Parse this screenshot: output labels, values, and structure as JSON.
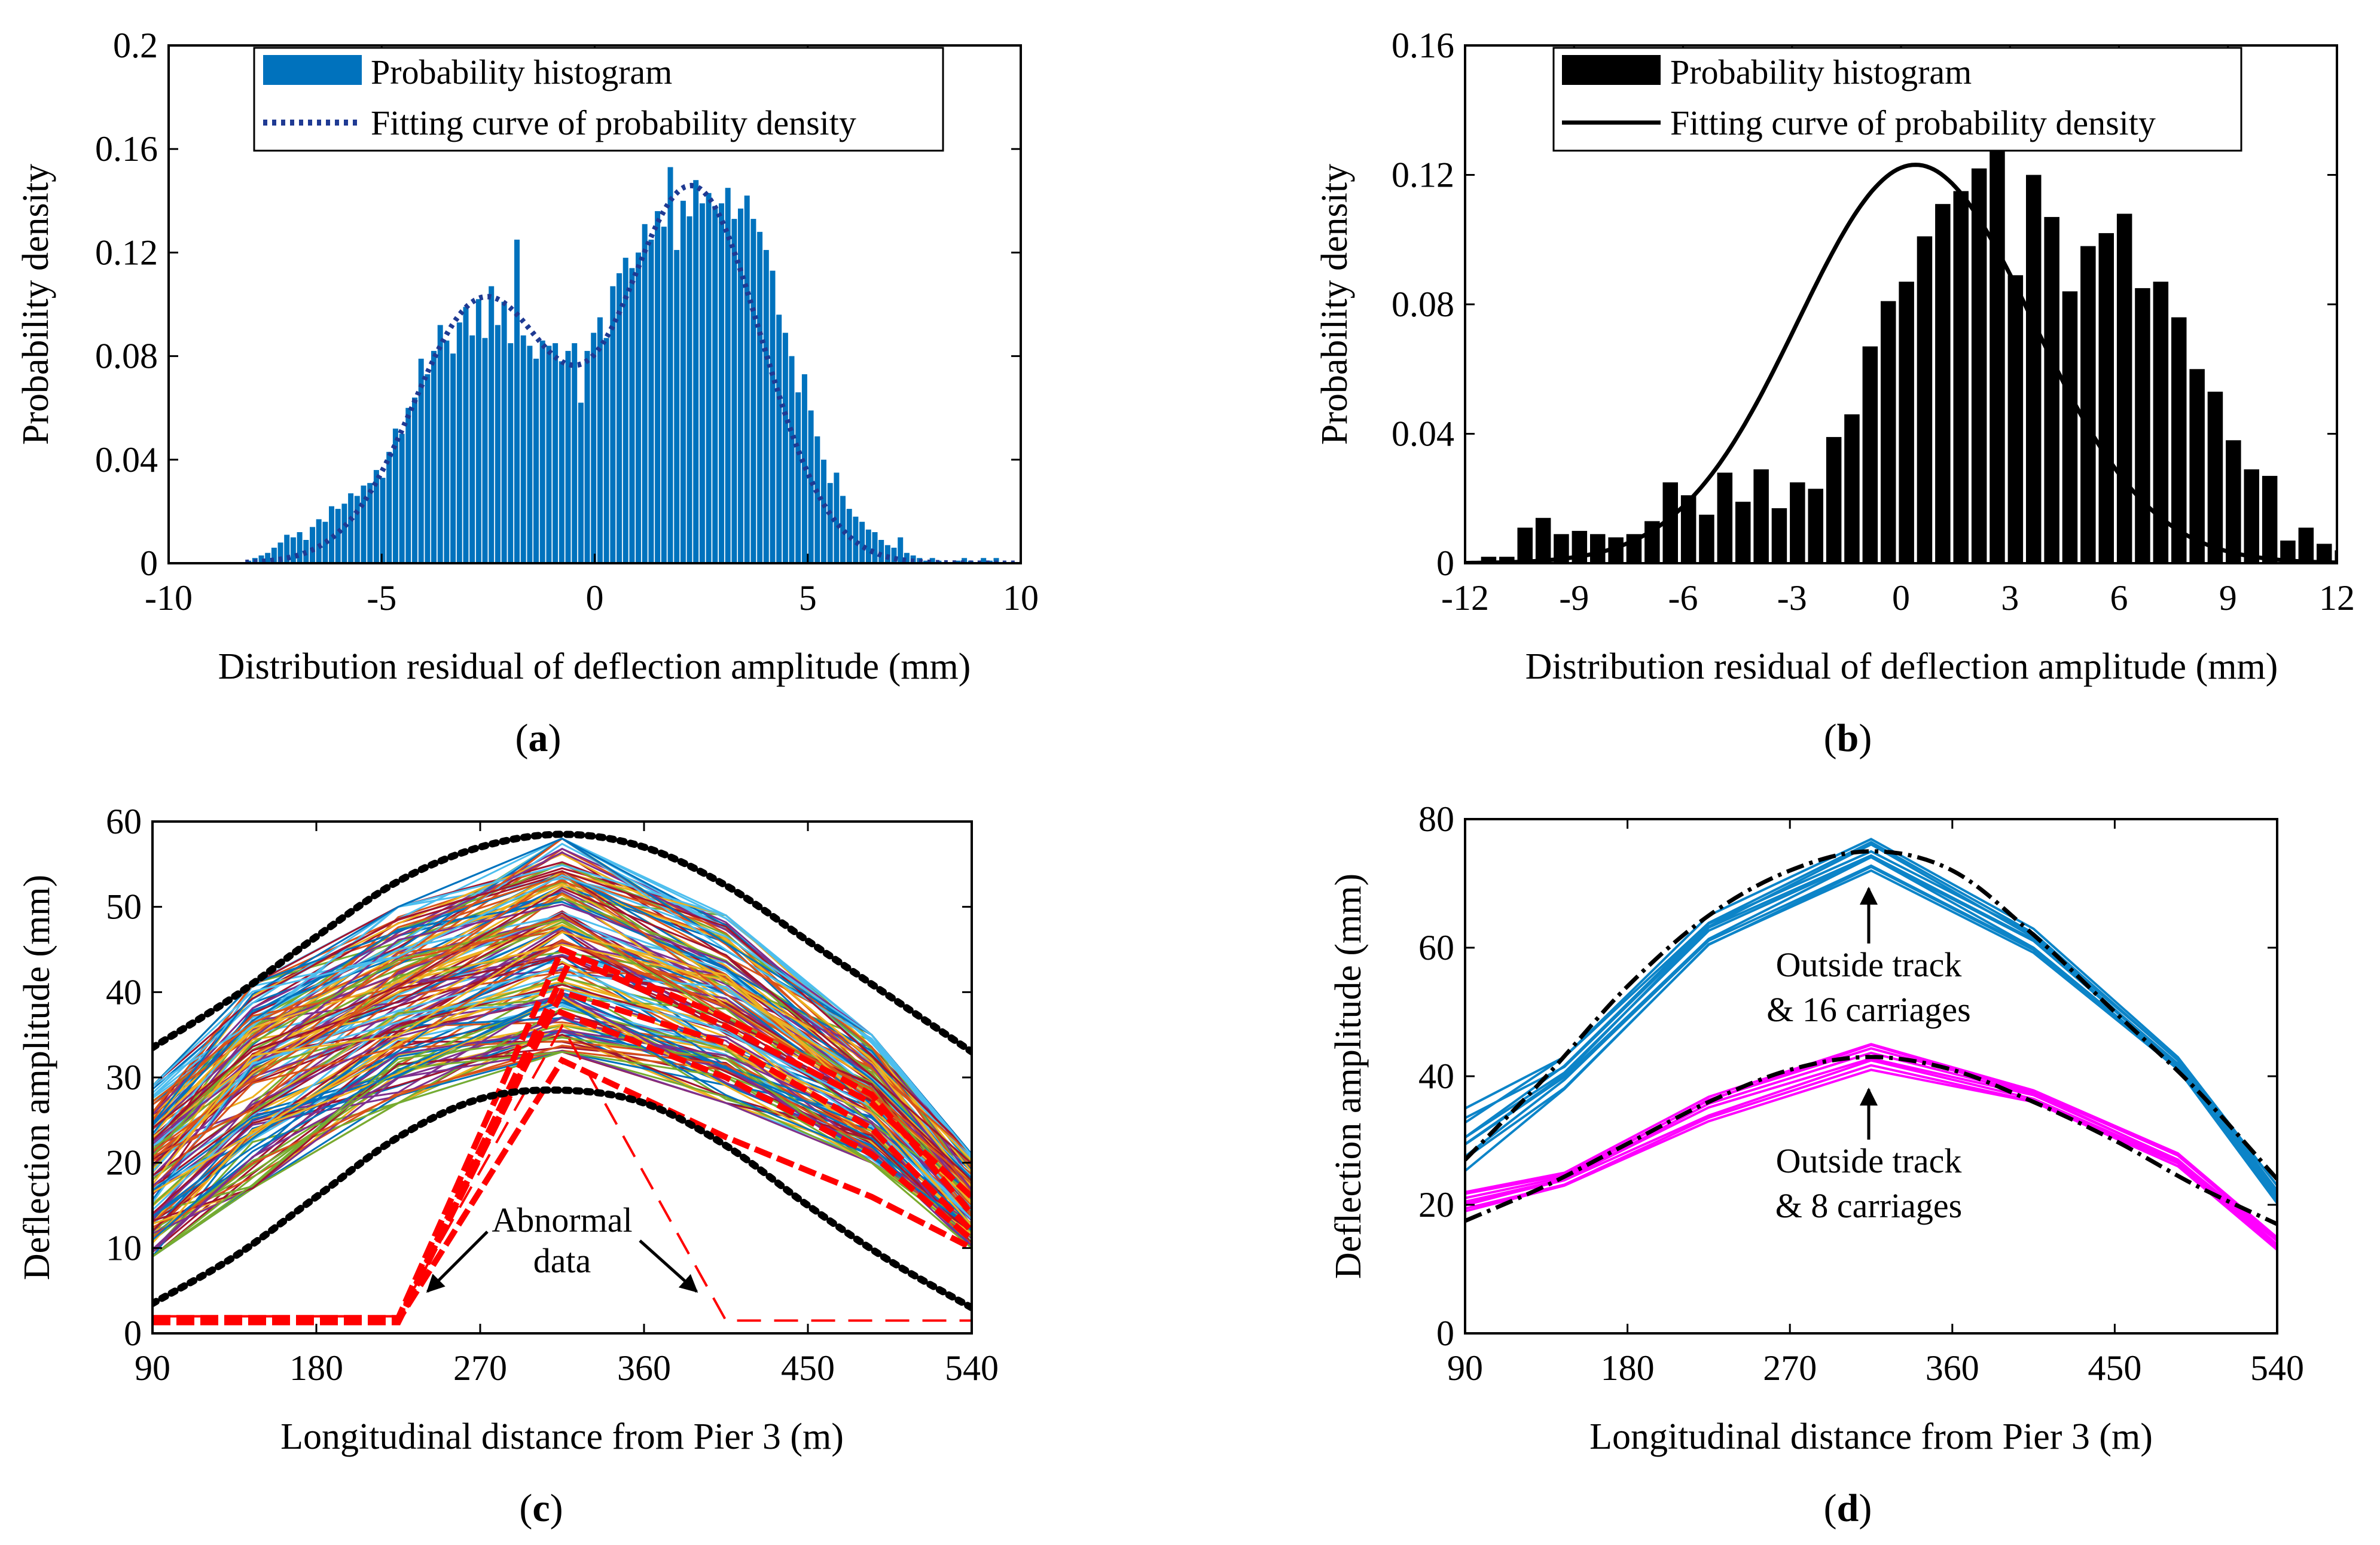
{
  "colors": {
    "blue_bar": "#0072BD",
    "blue_curve": "#1F3A93",
    "black": "#000000",
    "red": "#FF0000",
    "magenta": "#FF00FF",
    "cyan_blue": "#0C84C8"
  },
  "chart_data": [
    {
      "id": "a",
      "caption_letter": "a",
      "type": "bar",
      "title": "",
      "xlabel": "Distribution residual of deflection amplitude (mm)",
      "ylabel": "Probability density",
      "xlim": [
        -10,
        10
      ],
      "ylim": [
        0,
        0.2
      ],
      "xticks": [
        -10,
        -5,
        0,
        5,
        10
      ],
      "xtick_labels": [
        "-10",
        "-5",
        "0",
        "5",
        "10"
      ],
      "yticks": [
        0,
        0.04,
        0.08,
        0.12,
        0.16,
        0.2
      ],
      "ytick_labels": [
        "0",
        "0.04",
        "0.08",
        "0.12",
        "0.16",
        "0.2"
      ],
      "legend": [
        "Probability histogram",
        "Fitting curve of probability density"
      ],
      "legend_position": "top",
      "histogram": {
        "start": -8.2,
        "bin_width": 0.15,
        "values": [
          0.001,
          0.002,
          0.003,
          0.004,
          0.006,
          0.008,
          0.011,
          0.01,
          0.012,
          0.009,
          0.014,
          0.017,
          0.016,
          0.022,
          0.021,
          0.023,
          0.027,
          0.026,
          0.03,
          0.031,
          0.036,
          0.033,
          0.043,
          0.052,
          0.05,
          0.06,
          0.064,
          0.079,
          0.073,
          0.082,
          0.092,
          0.086,
          0.081,
          0.093,
          0.099,
          0.088,
          0.102,
          0.087,
          0.107,
          0.092,
          0.101,
          0.085,
          0.125,
          0.088,
          0.084,
          0.079,
          0.086,
          0.084,
          0.085,
          0.078,
          0.082,
          0.085,
          0.062,
          0.082,
          0.089,
          0.095,
          0.087,
          0.107,
          0.112,
          0.118,
          0.114,
          0.12,
          0.131,
          0.125,
          0.136,
          0.13,
          0.153,
          0.121,
          0.14,
          0.134,
          0.148,
          0.139,
          0.143,
          0.138,
          0.139,
          0.145,
          0.133,
          0.137,
          0.142,
          0.133,
          0.128,
          0.121,
          0.113,
          0.096,
          0.089,
          0.08,
          0.066,
          0.073,
          0.059,
          0.049,
          0.04,
          0.031,
          0.035,
          0.026,
          0.021,
          0.018,
          0.016,
          0.013,
          0.012,
          0.009,
          0.007,
          0.006,
          0.01,
          0.004,
          0.003,
          0.002,
          0.001,
          0.002,
          0.001,
          0,
          0,
          0.001,
          0.002,
          0.001,
          0,
          0.002,
          0.001,
          0.002
        ]
      },
      "fit_curve": {
        "style": "dotted",
        "components": [
          {
            "weight": 0.42,
            "mean": -2.6,
            "sd": 1.65
          },
          {
            "weight": 0.58,
            "mean": 2.3,
            "sd": 1.6
          }
        ]
      }
    },
    {
      "id": "b",
      "caption_letter": "b",
      "type": "bar",
      "title": "",
      "xlabel": "Distribution residual of deflection amplitude (mm)",
      "ylabel": "Probability density",
      "xlim": [
        -12,
        12
      ],
      "ylim": [
        0,
        0.16
      ],
      "xticks": [
        -12,
        -9,
        -6,
        -3,
        0,
        3,
        6,
        9,
        12
      ],
      "xtick_labels": [
        "-12",
        "-9",
        "-6",
        "-3",
        "0",
        "3",
        "6",
        "9",
        "12"
      ],
      "yticks": [
        0,
        0.04,
        0.08,
        0.12,
        0.16
      ],
      "ytick_labels": [
        "0",
        "0.04",
        "0.08",
        "0.12",
        "0.16"
      ],
      "legend": [
        "Probability histogram",
        "Fitting curve of probability density"
      ],
      "legend_position": "top",
      "histogram": {
        "start": -11.6,
        "bin_width": 0.5,
        "values": [
          0.002,
          0.002,
          0.011,
          0.014,
          0.009,
          0.01,
          0.009,
          0.008,
          0.009,
          0.013,
          0.025,
          0.021,
          0.015,
          0.028,
          0.019,
          0.029,
          0.017,
          0.025,
          0.023,
          0.039,
          0.046,
          0.067,
          0.081,
          0.087,
          0.101,
          0.111,
          0.115,
          0.122,
          0.13,
          0.089,
          0.12,
          0.107,
          0.084,
          0.098,
          0.102,
          0.108,
          0.085,
          0.087,
          0.076,
          0.06,
          0.053,
          0.038,
          0.029,
          0.027,
          0.007,
          0.011,
          0.006,
          0.004
        ]
      },
      "fit_curve": {
        "style": "solid",
        "components": [
          {
            "weight": 1.0,
            "mean": 0.4,
            "sd": 3.24
          }
        ]
      }
    },
    {
      "id": "c",
      "caption_letter": "c",
      "type": "line",
      "title": "",
      "xlabel": "Longitudinal distance from Pier 3 (m)",
      "ylabel": "Deflection amplitude (mm)",
      "xlim": [
        90,
        540
      ],
      "ylim": [
        0,
        60
      ],
      "xticks": [
        90,
        180,
        270,
        360,
        450,
        540
      ],
      "xtick_labels": [
        "90",
        "180",
        "270",
        "360",
        "450",
        "540"
      ],
      "yticks": [
        0,
        10,
        20,
        30,
        40,
        50,
        60
      ],
      "ytick_labels": [
        "0",
        "10",
        "20",
        "30",
        "40",
        "50",
        "60"
      ],
      "measurement_x": [
        90,
        145,
        225,
        315,
        405,
        485,
        540
      ],
      "band_profile": {
        "low": [
          9,
          17,
          27,
          33,
          27,
          20,
          10
        ],
        "high": [
          29,
          41,
          50,
          58,
          49,
          35,
          21
        ]
      },
      "series_count": 150,
      "envelope_upper": {
        "style": "dotted",
        "x": [
          90,
          135,
          180,
          225,
          270,
          315,
          360,
          405,
          450,
          495,
          540
        ],
        "y": [
          33.5,
          39.5,
          46.5,
          53,
          57,
          58.5,
          57,
          52.5,
          46,
          39.5,
          33
        ]
      },
      "envelope_lower": {
        "style": "dotted",
        "x": [
          90,
          135,
          180,
          225,
          270,
          315,
          360,
          405,
          450,
          495,
          540
        ],
        "y": [
          3.5,
          9,
          16,
          23,
          27.5,
          28.5,
          27,
          22,
          15,
          8.5,
          3
        ]
      },
      "abnormal_series": [
        {
          "x": [
            90,
            225,
            315,
            405,
            485,
            540
          ],
          "y": [
            1.5,
            1.5,
            32,
            23,
            16,
            10
          ]
        },
        {
          "x": [
            90,
            225,
            315,
            405,
            485,
            540
          ],
          "y": [
            1.8,
            1.8,
            45,
            37,
            28,
            14
          ]
        },
        {
          "x": [
            90,
            225,
            315,
            405,
            485,
            540
          ],
          "y": [
            1.3,
            1.3,
            40,
            34,
            24,
            12
          ]
        },
        {
          "x": [
            90,
            225,
            310,
            405,
            485,
            540
          ],
          "y": [
            1.6,
            1.6,
            38,
            30,
            21,
            11
          ]
        },
        {
          "x": [
            90,
            225,
            320,
            405,
            485,
            540
          ],
          "y": [
            1.4,
            1.4,
            44,
            36,
            27,
            16
          ]
        },
        {
          "x": [
            90,
            225,
            315,
            405,
            540
          ],
          "y": [
            2.0,
            2.0,
            36,
            1.5,
            1.5
          ]
        }
      ],
      "annotation": {
        "lines": [
          "Abnormal",
          "data"
        ],
        "arrow_targets": [
          {
            "x": 230,
            "y": 5
          },
          {
            "x": 400,
            "y": 5
          }
        ]
      }
    },
    {
      "id": "d",
      "caption_letter": "d",
      "type": "line",
      "title": "",
      "xlabel": "Longitudinal distance from Pier 3 (m)",
      "ylabel": "Deflection amplitude (mm)",
      "xlim": [
        90,
        540
      ],
      "ylim": [
        0,
        80
      ],
      "xticks": [
        90,
        180,
        270,
        360,
        450,
        540
      ],
      "xtick_labels": [
        "90",
        "180",
        "270",
        "360",
        "450",
        "540"
      ],
      "yticks": [
        0,
        20,
        40,
        60,
        80
      ],
      "ytick_labels": [
        "0",
        "20",
        "40",
        "60",
        "80"
      ],
      "series": [
        {
          "name": "Outside track & 16 carriages",
          "x": [
            90,
            145,
            225,
            315,
            405,
            485,
            540
          ],
          "low": [
            25,
            38,
            60,
            72,
            59,
            41,
            20
          ],
          "high": [
            35,
            43,
            65,
            77,
            63,
            43,
            23
          ],
          "count": 10,
          "color": "#0C84C8"
        },
        {
          "name": "Outside track & 8 carriages",
          "x": [
            90,
            145,
            225,
            315,
            405,
            485,
            540
          ],
          "low": [
            19,
            23,
            33,
            41,
            36,
            26,
            13
          ],
          "high": [
            22,
            25,
            37,
            45,
            38,
            28,
            15
          ],
          "count": 8,
          "color": "#FF00FF"
        }
      ],
      "fit_curves": [
        {
          "style": "dash-dot",
          "x": [
            90,
            135,
            180,
            225,
            270,
            315,
            360,
            405,
            450,
            495,
            540
          ],
          "y": [
            27,
            40,
            54,
            65,
            72,
            75,
            72,
            62,
            50,
            38,
            24
          ]
        },
        {
          "style": "dash-dot",
          "x": [
            90,
            135,
            180,
            225,
            270,
            315,
            360,
            405,
            450,
            495,
            540
          ],
          "y": [
            17.5,
            23,
            29.5,
            36,
            41,
            43,
            41,
            36,
            30,
            23,
            17
          ]
        }
      ],
      "annotations": [
        {
          "lines": [
            "Outside track",
            "& 16 carriages"
          ],
          "arrow_target": {
            "x": 315,
            "y": 73
          }
        },
        {
          "lines": [
            "Outside track",
            "& 8 carriages"
          ],
          "arrow_target": {
            "x": 315,
            "y": 42
          }
        }
      ]
    }
  ]
}
